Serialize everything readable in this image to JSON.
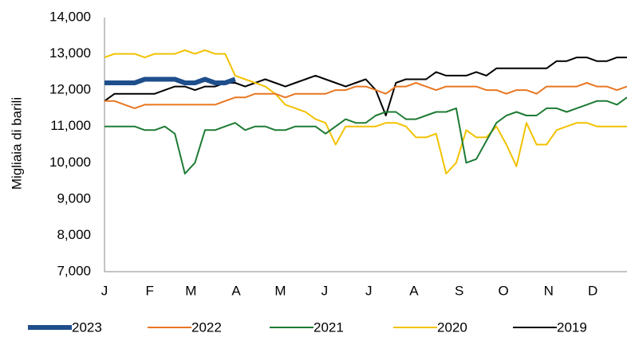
{
  "chart_data": {
    "type": "line",
    "y_label": "Migliaia di barili",
    "x": [
      1,
      2,
      3,
      4,
      5,
      6,
      7,
      8,
      9,
      10,
      11,
      12,
      13,
      14,
      15,
      16,
      17,
      18,
      19,
      20,
      21,
      22,
      23,
      24,
      25,
      26,
      27,
      28,
      29,
      30,
      31,
      32,
      33,
      34,
      35,
      36,
      37,
      38,
      39,
      40,
      41,
      42,
      43,
      44,
      45,
      46,
      47,
      48,
      49,
      50,
      51,
      52,
      53
    ],
    "xlim": [
      1,
      53
    ],
    "xticks": [
      {
        "value": 1,
        "label": "J"
      },
      {
        "value": 5.5,
        "label": "F"
      },
      {
        "value": 9.6,
        "label": "M"
      },
      {
        "value": 14.1,
        "label": "A"
      },
      {
        "value": 18.5,
        "label": "M"
      },
      {
        "value": 22.9,
        "label": "J"
      },
      {
        "value": 27.3,
        "label": "J"
      },
      {
        "value": 31.8,
        "label": "A"
      },
      {
        "value": 36.3,
        "label": "S"
      },
      {
        "value": 40.7,
        "label": "O"
      },
      {
        "value": 45.2,
        "label": "N"
      },
      {
        "value": 49.6,
        "label": "D"
      }
    ],
    "ylim": [
      7000,
      14000
    ],
    "yticks": [
      {
        "value": 7000,
        "label": "7,000"
      },
      {
        "value": 8000,
        "label": "8,000"
      },
      {
        "value": 9000,
        "label": "9,000"
      },
      {
        "value": 10000,
        "label": "10,000"
      },
      {
        "value": 11000,
        "label": "11,000"
      },
      {
        "value": 12000,
        "label": "12,000"
      },
      {
        "value": 13000,
        "label": "13,000"
      },
      {
        "value": 14000,
        "label": "14,000"
      }
    ],
    "series": [
      {
        "name": "2023",
        "color": "#1f4e8c",
        "values": [
          12200,
          12200,
          12200,
          12200,
          12300,
          12300,
          12300,
          12300,
          12200,
          12200,
          12300,
          12200,
          12200,
          12300,
          null,
          null,
          null,
          null,
          null,
          null,
          null,
          null,
          null,
          null,
          null,
          null,
          null,
          null,
          null,
          null,
          null,
          null,
          null,
          null,
          null,
          null,
          null,
          null,
          null,
          null,
          null,
          null,
          null,
          null,
          null,
          null,
          null,
          null,
          null,
          null,
          null,
          null,
          null
        ]
      },
      {
        "name": "2022",
        "color": "#e87722",
        "values": [
          11700,
          11700,
          11600,
          11500,
          11600,
          11600,
          11600,
          11600,
          11600,
          11600,
          11600,
          11600,
          11700,
          11800,
          11800,
          11900,
          11900,
          11900,
          11800,
          11900,
          11900,
          11900,
          11900,
          12000,
          12000,
          12100,
          12100,
          12000,
          11900,
          12100,
          12100,
          12200,
          12100,
          12000,
          12100,
          12100,
          12100,
          12100,
          12000,
          12000,
          11900,
          12000,
          12000,
          11900,
          12100,
          12100,
          12100,
          12100,
          12200,
          12100,
          12100,
          12000,
          12100
        ]
      },
      {
        "name": "2021",
        "color": "#1e7b34",
        "values": [
          11000,
          11000,
          11000,
          11000,
          10900,
          10900,
          11000,
          10800,
          9700,
          10000,
          10900,
          10900,
          11000,
          11100,
          10900,
          11000,
          11000,
          10900,
          10900,
          11000,
          11000,
          11000,
          10800,
          11000,
          11200,
          11100,
          11100,
          11300,
          11400,
          11400,
          11200,
          11200,
          11300,
          11400,
          11400,
          11500,
          10000,
          10100,
          10600,
          11100,
          11300,
          11400,
          11300,
          11300,
          11500,
          11500,
          11400,
          11500,
          11600,
          11700,
          11700,
          11600,
          11800
        ]
      },
      {
        "name": "2020",
        "color": "#f2c200",
        "values": [
          12900,
          13000,
          13000,
          13000,
          12900,
          13000,
          13000,
          13000,
          13100,
          13000,
          13100,
          13000,
          13000,
          12400,
          12300,
          12200,
          12100,
          11900,
          11600,
          11500,
          11400,
          11200,
          11100,
          10500,
          11000,
          11000,
          11000,
          11000,
          11100,
          11100,
          11000,
          10700,
          10700,
          10800,
          9700,
          10000,
          10900,
          10700,
          10700,
          11000,
          10500,
          9900,
          11100,
          10500,
          10500,
          10900,
          11000,
          11100,
          11100,
          11000,
          11000,
          11000,
          11000
        ]
      },
      {
        "name": "2019",
        "color": "#000000",
        "values": [
          11700,
          11900,
          11900,
          11900,
          11900,
          11900,
          12000,
          12100,
          12100,
          12000,
          12100,
          12100,
          12200,
          12200,
          12100,
          12200,
          12300,
          12200,
          12100,
          12200,
          12300,
          12400,
          12300,
          12200,
          12100,
          12200,
          12300,
          12000,
          11300,
          12200,
          12300,
          12300,
          12300,
          12500,
          12400,
          12400,
          12400,
          12500,
          12400,
          12600,
          12600,
          12600,
          12600,
          12600,
          12600,
          12800,
          12800,
          12900,
          12900,
          12800,
          12800,
          12900,
          12900
        ]
      }
    ]
  }
}
